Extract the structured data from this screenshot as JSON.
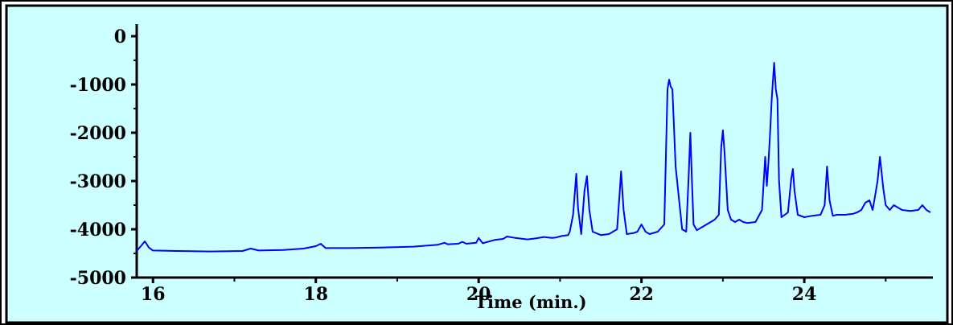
{
  "chart_data": {
    "type": "line",
    "title": "",
    "xlabel": "Time (min.)",
    "ylabel": "",
    "xlim": [
      15.8,
      25.55
    ],
    "ylim": [
      -5000,
      250
    ],
    "grid": false,
    "legend": "none",
    "colors": {
      "plot_background": "#ccffff",
      "line": "#0000ff",
      "axis": "#000000",
      "border": "#000000"
    },
    "x_ticks": [
      {
        "value": 16,
        "label": "16"
      },
      {
        "value": 18,
        "label": "18"
      },
      {
        "value": 20,
        "label": "20"
      },
      {
        "value": 22,
        "label": "22"
      },
      {
        "value": 24,
        "label": "24"
      }
    ],
    "y_ticks": [
      {
        "value": 0,
        "label": "0"
      },
      {
        "value": -1000,
        "label": "-1000"
      },
      {
        "value": -2000,
        "label": "-2000"
      },
      {
        "value": -3000,
        "label": "-3000"
      },
      {
        "value": -4000,
        "label": "-4000"
      },
      {
        "value": -5000,
        "label": "-5000"
      }
    ],
    "series": [
      {
        "x": [
          15.8,
          15.85,
          15.9,
          15.95,
          16.0,
          16.3,
          16.7,
          17.1,
          17.2,
          17.3,
          17.6,
          17.85,
          18.0,
          18.06,
          18.12,
          18.4,
          18.8,
          19.2,
          19.5,
          19.58,
          19.62,
          19.75,
          19.8,
          19.85,
          19.97,
          20.0,
          20.05,
          20.2,
          20.3,
          20.35,
          20.45,
          20.6,
          20.7,
          20.8,
          20.9,
          20.95,
          21.02,
          21.1,
          21.12,
          21.16,
          21.2,
          21.22,
          21.26,
          21.3,
          21.33,
          21.36,
          21.4,
          21.5,
          21.6,
          21.7,
          21.73,
          21.75,
          21.78,
          21.82,
          21.9,
          21.95,
          22.0,
          22.05,
          22.1,
          22.2,
          22.28,
          22.32,
          22.34,
          22.36,
          22.38,
          22.42,
          22.5,
          22.55,
          22.58,
          22.6,
          22.62,
          22.64,
          22.68,
          22.75,
          22.8,
          22.85,
          22.9,
          22.95,
          22.98,
          23.0,
          23.02,
          23.06,
          23.1,
          23.15,
          23.2,
          23.25,
          23.3,
          23.4,
          23.48,
          23.52,
          23.54,
          23.56,
          23.58,
          23.6,
          23.63,
          23.65,
          23.67,
          23.69,
          23.72,
          23.76,
          23.8,
          23.84,
          23.86,
          23.88,
          23.92,
          24.0,
          24.1,
          24.2,
          24.25,
          24.28,
          24.31,
          24.35,
          24.4,
          24.5,
          24.6,
          24.65,
          24.7,
          24.75,
          24.8,
          24.84,
          24.87,
          24.9,
          24.93,
          24.97,
          25.0,
          25.05,
          25.1,
          25.2,
          25.3,
          25.4,
          25.45,
          25.5,
          25.55
        ],
        "y": [
          -4450,
          -4350,
          -4250,
          -4380,
          -4440,
          -4450,
          -4460,
          -4450,
          -4400,
          -4440,
          -4430,
          -4400,
          -4350,
          -4300,
          -4390,
          -4390,
          -4380,
          -4360,
          -4320,
          -4280,
          -4310,
          -4300,
          -4260,
          -4300,
          -4280,
          -4180,
          -4290,
          -4220,
          -4200,
          -4150,
          -4180,
          -4210,
          -4190,
          -4160,
          -4180,
          -4170,
          -4140,
          -4120,
          -4050,
          -3700,
          -2850,
          -3550,
          -4100,
          -3200,
          -2900,
          -3600,
          -4050,
          -4120,
          -4100,
          -4000,
          -3300,
          -2800,
          -3600,
          -4100,
          -4080,
          -4050,
          -3900,
          -4050,
          -4100,
          -4050,
          -3900,
          -1100,
          -900,
          -1050,
          -1100,
          -2700,
          -4000,
          -4050,
          -2900,
          -2000,
          -3000,
          -3900,
          -4020,
          -3950,
          -3900,
          -3850,
          -3800,
          -3700,
          -2300,
          -1950,
          -2400,
          -3600,
          -3800,
          -3850,
          -3800,
          -3850,
          -3870,
          -3850,
          -3600,
          -2500,
          -3100,
          -2600,
          -2000,
          -1300,
          -550,
          -1100,
          -1300,
          -3000,
          -3750,
          -3700,
          -3650,
          -2950,
          -2750,
          -3200,
          -3700,
          -3750,
          -3720,
          -3700,
          -3500,
          -2700,
          -3400,
          -3720,
          -3700,
          -3700,
          -3680,
          -3650,
          -3600,
          -3450,
          -3400,
          -3600,
          -3300,
          -3000,
          -2500,
          -3150,
          -3500,
          -3600,
          -3500,
          -3600,
          -3620,
          -3600,
          -3500,
          -3600,
          -3650
        ]
      }
    ]
  }
}
